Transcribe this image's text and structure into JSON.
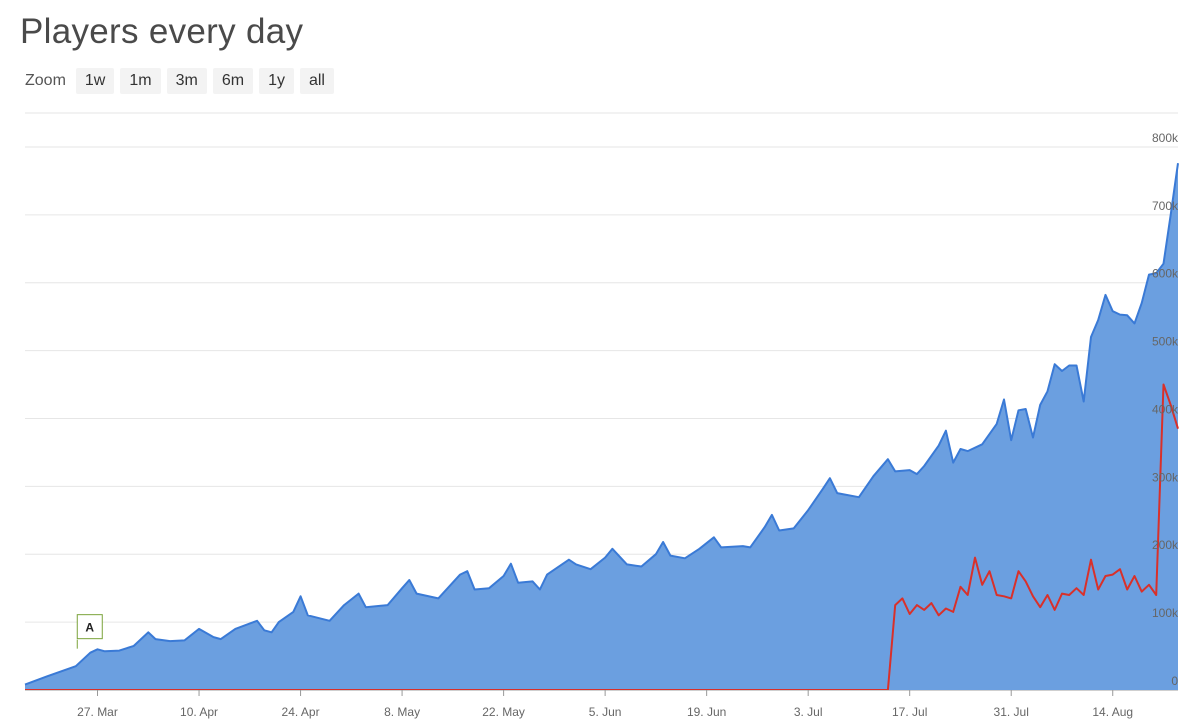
{
  "header": {
    "title": "Players every day"
  },
  "zoom": {
    "label": "Zoom",
    "buttons": [
      "1w",
      "1m",
      "3m",
      "6m",
      "1y",
      "all"
    ]
  },
  "chart_data": {
    "type": "area",
    "title": "Players every day",
    "x_start": "2024-03-17",
    "x_end": "2024-08-23",
    "xlim": [
      "2024-03-17",
      "2024-08-23"
    ],
    "ylim": [
      0,
      850000
    ],
    "grid": true,
    "y_ticks": [
      0,
      100000,
      200000,
      300000,
      400000,
      500000,
      600000,
      700000,
      800000
    ],
    "y_tick_labels": [
      "0",
      "100k",
      "200k",
      "300k",
      "400k",
      "500k",
      "600k",
      "700k",
      "800k"
    ],
    "x_ticks": [
      "2024-03-27",
      "2024-04-10",
      "2024-04-24",
      "2024-05-08",
      "2024-05-22",
      "2024-06-05",
      "2024-06-19",
      "2024-07-03",
      "2024-07-17",
      "2024-07-31",
      "2024-08-14"
    ],
    "x_tick_labels": [
      "27. Mar",
      "10. Apr",
      "24. Apr",
      "8. May",
      "22. May",
      "5. Jun",
      "19. Jun",
      "3. Jul",
      "17. Jul",
      "31. Jul",
      "14. Aug"
    ],
    "flags": [
      {
        "x": "2024-03-26",
        "y": 55000,
        "label": "A"
      }
    ],
    "series": [
      {
        "type": "area",
        "color": "#6b9fe0",
        "line_color": "#3a7ad6",
        "points": [
          [
            "2024-03-17",
            8000
          ],
          [
            "2024-03-20",
            20000
          ],
          [
            "2024-03-24",
            35000
          ],
          [
            "2024-03-26",
            55000
          ],
          [
            "2024-03-27",
            60000
          ],
          [
            "2024-03-28",
            57000
          ],
          [
            "2024-03-30",
            58000
          ],
          [
            "2024-04-01",
            65000
          ],
          [
            "2024-04-03",
            85000
          ],
          [
            "2024-04-04",
            75000
          ],
          [
            "2024-04-06",
            72000
          ],
          [
            "2024-04-08",
            73000
          ],
          [
            "2024-04-10",
            90000
          ],
          [
            "2024-04-12",
            78000
          ],
          [
            "2024-04-13",
            75000
          ],
          [
            "2024-04-15",
            90000
          ],
          [
            "2024-04-18",
            102000
          ],
          [
            "2024-04-19",
            88000
          ],
          [
            "2024-04-20",
            85000
          ],
          [
            "2024-04-21",
            100000
          ],
          [
            "2024-04-23",
            115000
          ],
          [
            "2024-04-24",
            138000
          ],
          [
            "2024-04-25",
            110000
          ],
          [
            "2024-04-28",
            102000
          ],
          [
            "2024-04-30",
            125000
          ],
          [
            "2024-05-02",
            142000
          ],
          [
            "2024-05-03",
            122000
          ],
          [
            "2024-05-06",
            125000
          ],
          [
            "2024-05-08",
            150000
          ],
          [
            "2024-05-09",
            162000
          ],
          [
            "2024-05-10",
            142000
          ],
          [
            "2024-05-13",
            135000
          ],
          [
            "2024-05-16",
            170000
          ],
          [
            "2024-05-17",
            175000
          ],
          [
            "2024-05-18",
            148000
          ],
          [
            "2024-05-20",
            150000
          ],
          [
            "2024-05-22",
            168000
          ],
          [
            "2024-05-23",
            186000
          ],
          [
            "2024-05-24",
            158000
          ],
          [
            "2024-05-26",
            160000
          ],
          [
            "2024-05-27",
            148000
          ],
          [
            "2024-05-28",
            170000
          ],
          [
            "2024-05-31",
            192000
          ],
          [
            "2024-06-01",
            185000
          ],
          [
            "2024-06-03",
            178000
          ],
          [
            "2024-06-05",
            195000
          ],
          [
            "2024-06-06",
            208000
          ],
          [
            "2024-06-08",
            185000
          ],
          [
            "2024-06-10",
            182000
          ],
          [
            "2024-06-12",
            200000
          ],
          [
            "2024-06-13",
            218000
          ],
          [
            "2024-06-14",
            198000
          ],
          [
            "2024-06-16",
            194000
          ],
          [
            "2024-06-18",
            208000
          ],
          [
            "2024-06-20",
            225000
          ],
          [
            "2024-06-21",
            210000
          ],
          [
            "2024-06-24",
            212000
          ],
          [
            "2024-06-25",
            210000
          ],
          [
            "2024-06-27",
            240000
          ],
          [
            "2024-06-28",
            258000
          ],
          [
            "2024-06-29",
            235000
          ],
          [
            "2024-07-01",
            238000
          ],
          [
            "2024-07-03",
            265000
          ],
          [
            "2024-07-05",
            296000
          ],
          [
            "2024-07-06",
            312000
          ],
          [
            "2024-07-07",
            290000
          ],
          [
            "2024-07-08",
            288000
          ],
          [
            "2024-07-10",
            284000
          ],
          [
            "2024-07-12",
            315000
          ],
          [
            "2024-07-14",
            340000
          ],
          [
            "2024-07-15",
            322000
          ],
          [
            "2024-07-17",
            324000
          ],
          [
            "2024-07-18",
            318000
          ],
          [
            "2024-07-19",
            330000
          ],
          [
            "2024-07-21",
            360000
          ],
          [
            "2024-07-22",
            382000
          ],
          [
            "2024-07-23",
            335000
          ],
          [
            "2024-07-24",
            355000
          ],
          [
            "2024-07-25",
            352000
          ],
          [
            "2024-07-27",
            362000
          ],
          [
            "2024-07-29",
            392000
          ],
          [
            "2024-07-30",
            428000
          ],
          [
            "2024-07-31",
            368000
          ],
          [
            "2024-08-01",
            412000
          ],
          [
            "2024-08-02",
            414000
          ],
          [
            "2024-08-03",
            372000
          ],
          [
            "2024-08-04",
            420000
          ],
          [
            "2024-08-05",
            440000
          ],
          [
            "2024-08-06",
            480000
          ],
          [
            "2024-08-07",
            470000
          ],
          [
            "2024-08-08",
            478000
          ],
          [
            "2024-08-09",
            478000
          ],
          [
            "2024-08-10",
            425000
          ],
          [
            "2024-08-11",
            520000
          ],
          [
            "2024-08-12",
            545000
          ],
          [
            "2024-08-13",
            582000
          ],
          [
            "2024-08-14",
            558000
          ],
          [
            "2024-08-15",
            553000
          ],
          [
            "2024-08-16",
            552000
          ],
          [
            "2024-08-17",
            540000
          ],
          [
            "2024-08-18",
            570000
          ],
          [
            "2024-08-19",
            612000
          ],
          [
            "2024-08-20",
            614000
          ],
          [
            "2024-08-21",
            628000
          ],
          [
            "2024-08-22",
            700000
          ],
          [
            "2024-08-23",
            776000
          ]
        ]
      },
      {
        "type": "line",
        "color": "#d9302a",
        "points": [
          [
            "2024-03-17",
            0
          ],
          [
            "2024-07-14",
            0
          ],
          [
            "2024-07-15",
            125000
          ],
          [
            "2024-07-16",
            135000
          ],
          [
            "2024-07-17",
            112000
          ],
          [
            "2024-07-18",
            125000
          ],
          [
            "2024-07-19",
            118000
          ],
          [
            "2024-07-20",
            128000
          ],
          [
            "2024-07-21",
            110000
          ],
          [
            "2024-07-22",
            120000
          ],
          [
            "2024-07-23",
            115000
          ],
          [
            "2024-07-24",
            152000
          ],
          [
            "2024-07-25",
            140000
          ],
          [
            "2024-07-26",
            195000
          ],
          [
            "2024-07-27",
            155000
          ],
          [
            "2024-07-28",
            175000
          ],
          [
            "2024-07-29",
            140000
          ],
          [
            "2024-07-30",
            138000
          ],
          [
            "2024-07-31",
            135000
          ],
          [
            "2024-08-01",
            175000
          ],
          [
            "2024-08-02",
            160000
          ],
          [
            "2024-08-03",
            138000
          ],
          [
            "2024-08-04",
            122000
          ],
          [
            "2024-08-05",
            140000
          ],
          [
            "2024-08-06",
            118000
          ],
          [
            "2024-08-07",
            142000
          ],
          [
            "2024-08-08",
            140000
          ],
          [
            "2024-08-09",
            150000
          ],
          [
            "2024-08-10",
            140000
          ],
          [
            "2024-08-11",
            192000
          ],
          [
            "2024-08-12",
            148000
          ],
          [
            "2024-08-13",
            168000
          ],
          [
            "2024-08-14",
            170000
          ],
          [
            "2024-08-15",
            178000
          ],
          [
            "2024-08-16",
            148000
          ],
          [
            "2024-08-17",
            168000
          ],
          [
            "2024-08-18",
            145000
          ],
          [
            "2024-08-19",
            155000
          ],
          [
            "2024-08-20",
            140000
          ],
          [
            "2024-08-21",
            450000
          ],
          [
            "2024-08-22",
            420000
          ],
          [
            "2024-08-23",
            385000
          ]
        ]
      }
    ]
  }
}
